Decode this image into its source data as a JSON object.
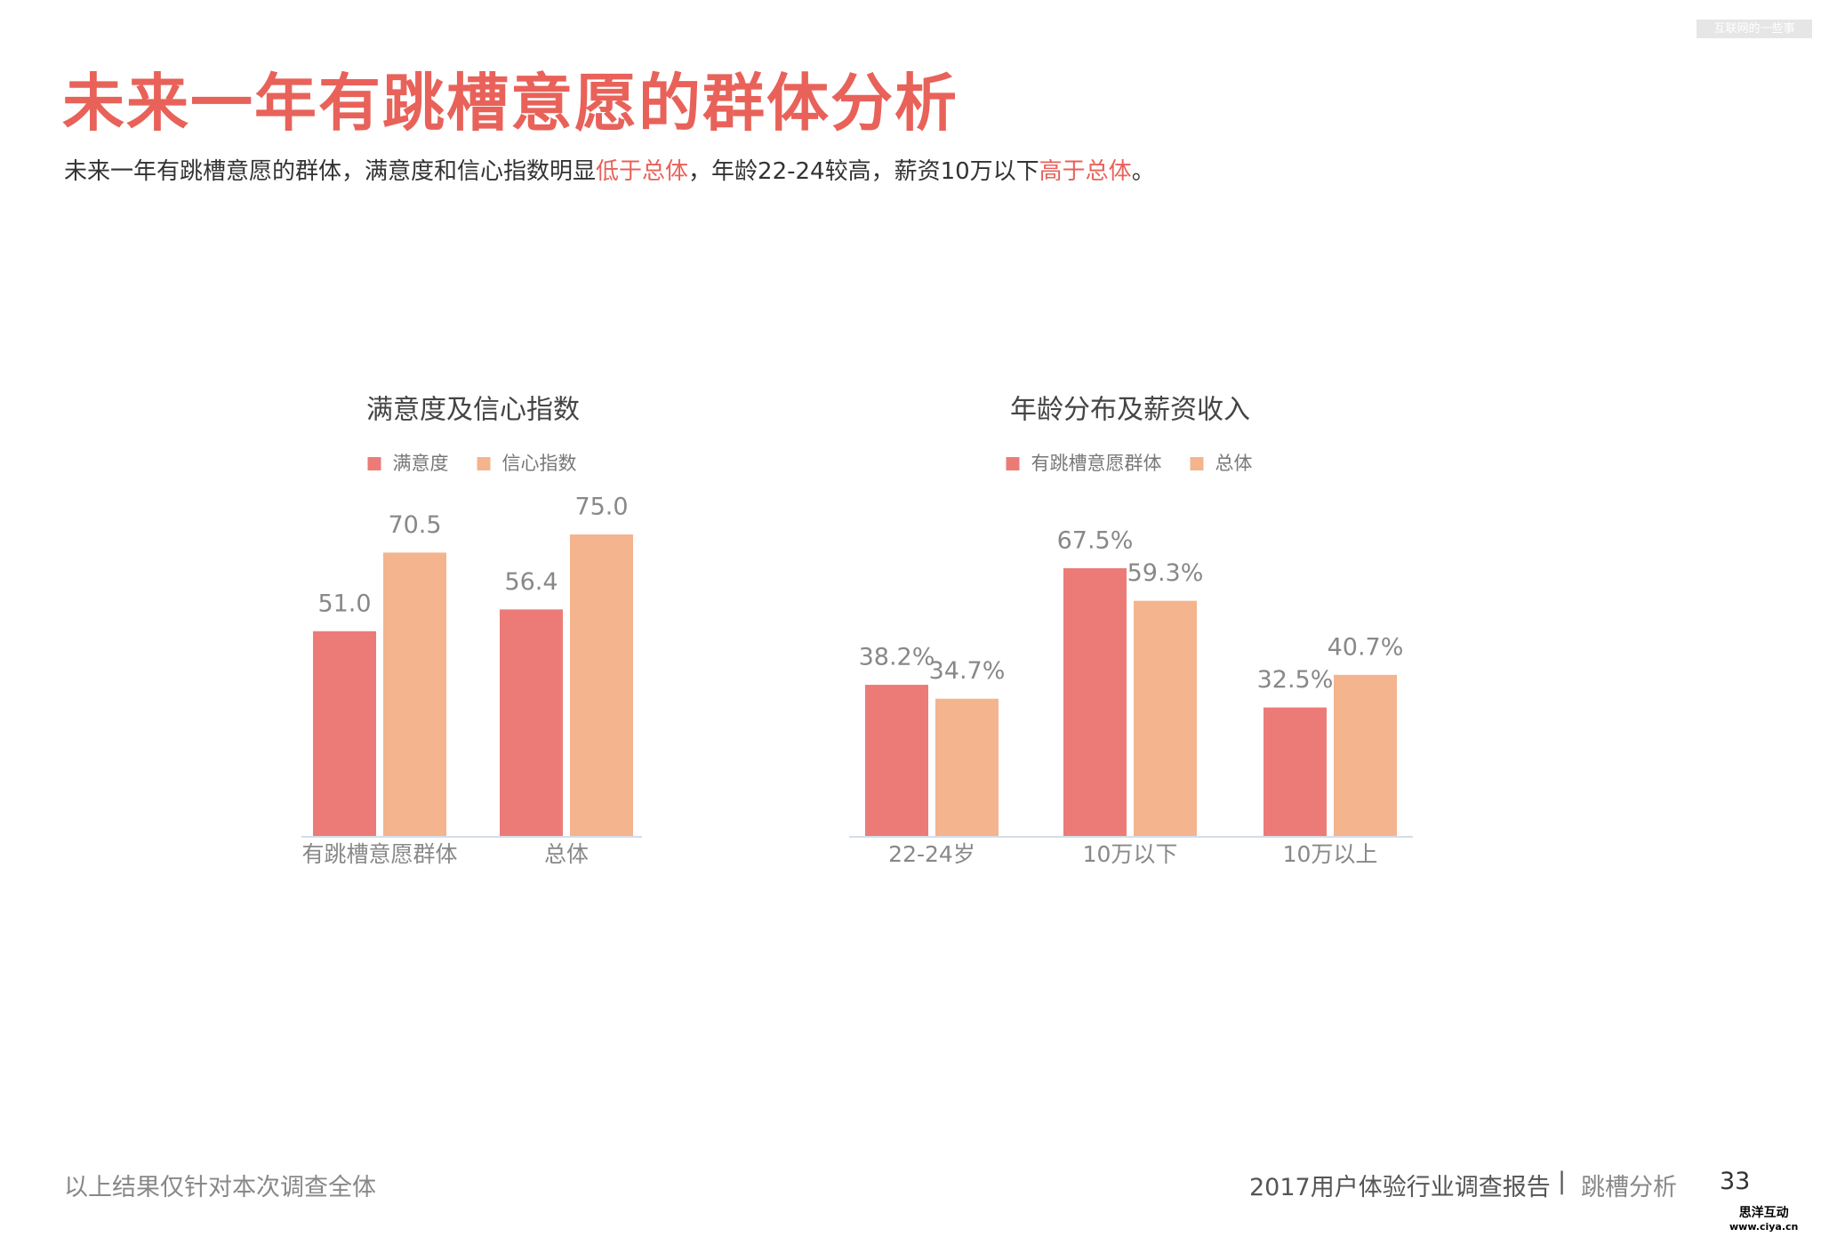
{
  "header": {
    "title": "未来一年有跳槽意愿的群体分析",
    "subtitle": [
      "未来一年有跳槽意愿的群体，满意度和信心指数明显",
      "低于总体",
      "，年龄22-24较高，薪资10万以下",
      "高于总体",
      "。"
    ]
  },
  "chart_data": [
    {
      "type": "bar",
      "title": "满意度及信心指数",
      "categories": [
        "有跳槽意愿群体",
        "总体"
      ],
      "series": [
        {
          "name": "满意度",
          "color": "#ec7b78",
          "values": [
            51.0,
            56.4
          ],
          "value_labels": [
            "51.0",
            "56.4"
          ]
        },
        {
          "name": "信心指数",
          "color": "#f4b48e",
          "values": [
            70.5,
            75.0
          ],
          "value_labels": [
            "70.5",
            "75.0"
          ]
        }
      ],
      "ylim": [
        0,
        90
      ]
    },
    {
      "type": "bar",
      "title": "年龄分布及薪资收入",
      "categories": [
        "22-24岁",
        "10万以下",
        "10万以上"
      ],
      "series": [
        {
          "name": "有跳槽意愿群体",
          "color": "#ec7b78",
          "values": [
            38.2,
            67.5,
            32.5
          ],
          "value_labels": [
            "38.2%",
            "67.5%",
            "32.5%"
          ]
        },
        {
          "name": "总体",
          "color": "#f4b48e",
          "values": [
            34.7,
            59.3,
            40.7
          ],
          "value_labels": [
            "34.7%",
            "59.3%",
            "40.7%"
          ]
        }
      ],
      "ylim": [
        0,
        80
      ]
    }
  ],
  "footer": {
    "note": "以上结果仅针对本次调查全体",
    "report": "2017用户体验行业调查报告",
    "section": "跳槽分析",
    "page": "33",
    "watermark_top": "互联网的一些事",
    "watermark_brand": "思洋互动",
    "watermark_url": "www.ciya.cn"
  }
}
